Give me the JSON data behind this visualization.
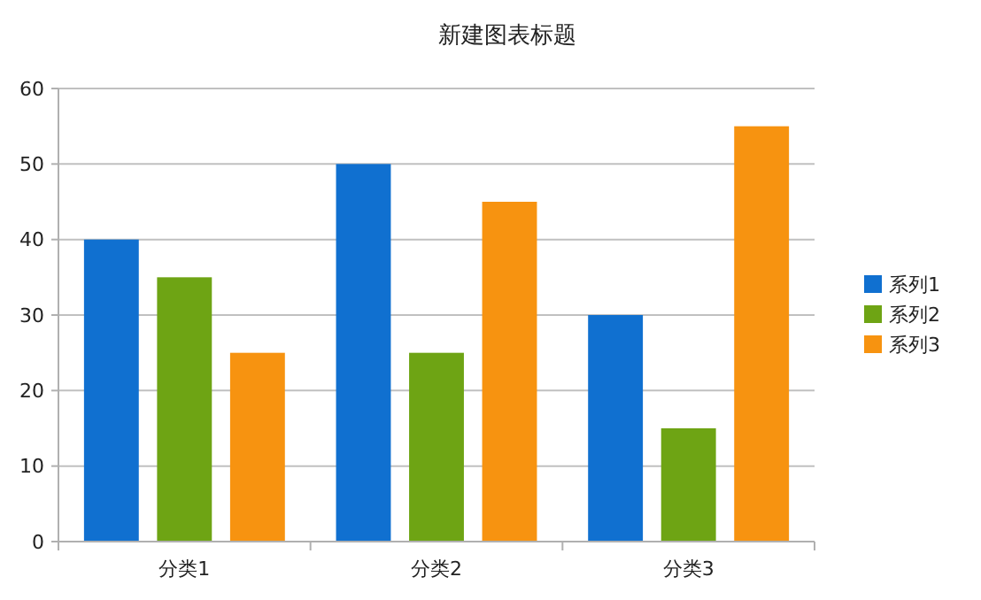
{
  "chart_data": {
    "type": "bar",
    "title": "新建图表标题",
    "categories": [
      "分类1",
      "分类2",
      "分类3"
    ],
    "series": [
      {
        "name": "系列1",
        "color": "#1070d0",
        "values": [
          40,
          50,
          30
        ]
      },
      {
        "name": "系列2",
        "color": "#6ea414",
        "values": [
          35,
          25,
          15
        ]
      },
      {
        "name": "系列3",
        "color": "#f79310",
        "values": [
          25,
          45,
          55
        ]
      }
    ],
    "ylim": [
      0,
      60
    ],
    "yticks": [
      0,
      10,
      20,
      30,
      40,
      50,
      60
    ],
    "grid": "y",
    "legend": "right"
  }
}
